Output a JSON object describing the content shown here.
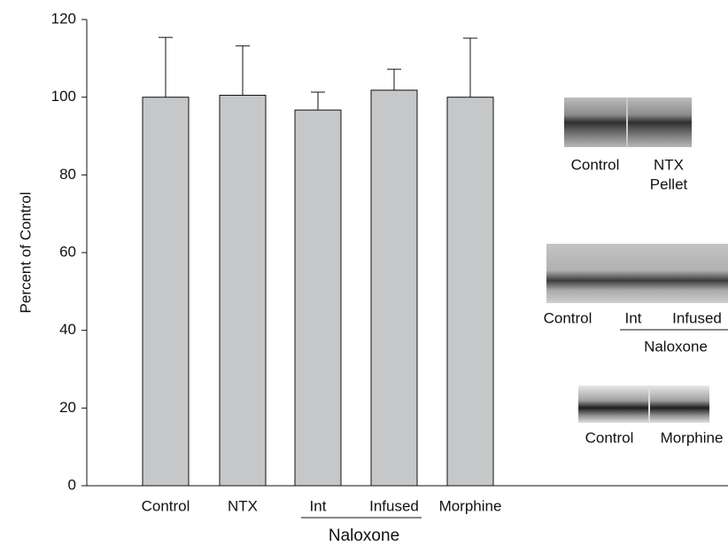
{
  "chart_data": {
    "type": "bar",
    "ylabel": "Percent of Control",
    "categories": [
      "Control",
      "NTX",
      "Int",
      "Infused",
      "Morphine"
    ],
    "values": [
      100,
      100.5,
      96.7,
      101.8,
      100
    ],
    "errors": [
      15.4,
      12.7,
      4.6,
      5.4,
      15.2
    ],
    "group_label": "Naloxone",
    "color": "#c6c7c9",
    "ylim": [
      0,
      120
    ],
    "yticks": [
      0,
      20,
      40,
      60,
      80,
      100,
      120
    ]
  },
  "insets": [
    {
      "labels": [
        [
          "Control"
        ],
        [
          "NTX",
          "Pellet"
        ]
      ]
    },
    {
      "labels": [
        [
          "Control"
        ],
        [
          "Int"
        ],
        [
          "Infused"
        ]
      ],
      "group_label": "Naloxone"
    },
    {
      "labels": [
        [
          "Control"
        ],
        [
          "Morphine"
        ]
      ]
    }
  ]
}
